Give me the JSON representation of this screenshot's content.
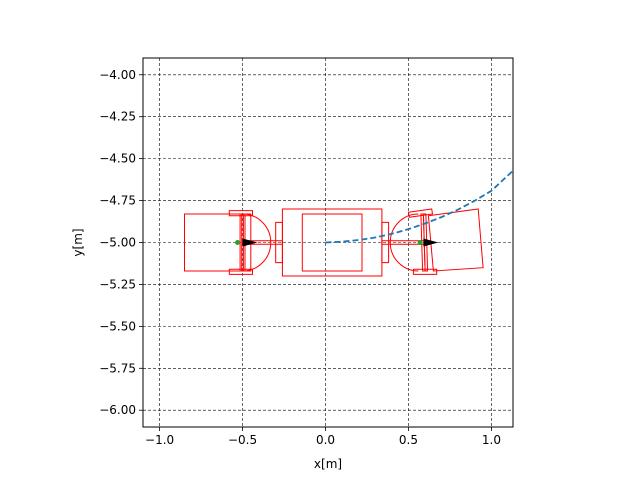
{
  "chart_data": {
    "type": "line",
    "title": "",
    "xlabel": "x[m]",
    "ylabel": "y[m]",
    "xlim": [
      -1.1,
      1.13
    ],
    "ylim": [
      -6.1,
      -3.9
    ],
    "xticks": [
      -1.0,
      -0.5,
      0.0,
      0.5,
      1.0
    ],
    "xtick_labels": [
      "−1.0",
      "−0.5",
      "0.0",
      "0.5",
      "1.0"
    ],
    "yticks": [
      -4.0,
      -4.25,
      -4.5,
      -4.75,
      -5.0,
      -5.25,
      -5.5,
      -5.75,
      -6.0
    ],
    "ytick_labels": [
      "−4.00",
      "−4.25",
      "−4.50",
      "−4.75",
      "−5.00",
      "−5.25",
      "−5.50",
      "−5.75",
      "−6.00"
    ],
    "grid": true,
    "series": [
      {
        "style": "dashed",
        "color": "#1f77b4",
        "x": [
          0.0,
          0.1,
          0.2,
          0.3,
          0.4,
          0.5,
          0.6,
          0.7,
          0.8,
          0.9,
          1.0,
          1.13
        ],
        "y": [
          -5.0,
          -4.995,
          -4.985,
          -4.97,
          -4.948,
          -4.92,
          -4.887,
          -4.848,
          -4.803,
          -4.751,
          -4.692,
          -4.572
        ]
      }
    ],
    "vehicle_color": "#ff0000",
    "vehicle_polygons": [
      {
        "name": "trailer-body",
        "points": [
          [
            -0.85,
            -4.83
          ],
          [
            -0.45,
            -4.83
          ],
          [
            -0.45,
            -5.17
          ],
          [
            -0.85,
            -5.17
          ]
        ]
      },
      {
        "name": "left-wheel-top",
        "points": [
          [
            -0.58,
            -4.81
          ],
          [
            -0.44,
            -4.81
          ],
          [
            -0.44,
            -4.84
          ],
          [
            -0.58,
            -4.84
          ]
        ]
      },
      {
        "name": "left-wheel-bottom",
        "points": [
          [
            -0.58,
            -5.16
          ],
          [
            -0.44,
            -5.16
          ],
          [
            -0.44,
            -5.19
          ],
          [
            -0.58,
            -5.19
          ]
        ]
      },
      {
        "name": "left-axle-a",
        "points": [
          [
            -0.515,
            -4.83
          ],
          [
            -0.505,
            -4.83
          ],
          [
            -0.505,
            -5.17
          ],
          [
            -0.515,
            -5.17
          ]
        ]
      },
      {
        "name": "left-axle-b",
        "points": [
          [
            -0.495,
            -4.83
          ],
          [
            -0.485,
            -4.83
          ],
          [
            -0.485,
            -5.17
          ],
          [
            -0.495,
            -5.17
          ]
        ]
      },
      {
        "name": "left-hitch",
        "points": [
          [
            -0.5,
            -4.99
          ],
          [
            -0.26,
            -4.99
          ],
          [
            -0.26,
            -5.01
          ],
          [
            -0.5,
            -5.01
          ]
        ]
      },
      {
        "name": "cab-front-bumper-left",
        "points": [
          [
            -0.3,
            -4.88
          ],
          [
            -0.26,
            -4.88
          ],
          [
            -0.26,
            -5.12
          ],
          [
            -0.3,
            -5.12
          ]
        ]
      },
      {
        "name": "cab-outer",
        "points": [
          [
            -0.26,
            -4.8
          ],
          [
            0.34,
            -4.8
          ],
          [
            0.34,
            -5.2
          ],
          [
            -0.26,
            -5.2
          ]
        ]
      },
      {
        "name": "cab-inner",
        "points": [
          [
            -0.14,
            -4.83
          ],
          [
            0.22,
            -4.83
          ],
          [
            0.22,
            -5.17
          ],
          [
            -0.14,
            -5.17
          ]
        ]
      },
      {
        "name": "cab-front-bumper-right",
        "points": [
          [
            0.34,
            -4.88
          ],
          [
            0.38,
            -4.88
          ],
          [
            0.38,
            -5.12
          ],
          [
            0.34,
            -5.12
          ]
        ]
      },
      {
        "name": "right-hitch",
        "points": [
          [
            0.34,
            -4.99
          ],
          [
            0.6,
            -4.99
          ],
          [
            0.6,
            -5.01
          ],
          [
            0.34,
            -5.01
          ]
        ]
      },
      {
        "name": "right-wheel-top",
        "points": [
          [
            0.5,
            -4.82
          ],
          [
            0.64,
            -4.8
          ],
          [
            0.645,
            -4.83
          ],
          [
            0.505,
            -4.85
          ]
        ]
      },
      {
        "name": "right-wheel-bottom",
        "points": [
          [
            0.53,
            -5.16
          ],
          [
            0.67,
            -5.16
          ],
          [
            0.67,
            -5.19
          ],
          [
            0.53,
            -5.19
          ]
        ]
      },
      {
        "name": "right-axle-a",
        "points": [
          [
            0.575,
            -4.83
          ],
          [
            0.59,
            -4.83
          ],
          [
            0.6,
            -5.17
          ],
          [
            0.585,
            -5.17
          ]
        ]
      },
      {
        "name": "right-axle-b",
        "points": [
          [
            0.59,
            -4.83
          ],
          [
            0.605,
            -4.83
          ],
          [
            0.615,
            -5.17
          ],
          [
            0.6,
            -5.17
          ]
        ]
      },
      {
        "name": "front-trailer-body",
        "points": [
          [
            0.62,
            -4.84
          ],
          [
            0.92,
            -4.8
          ],
          [
            0.95,
            -5.15
          ],
          [
            0.65,
            -5.17
          ]
        ]
      }
    ],
    "vehicle_arcs": [
      {
        "name": "left-coupler",
        "cx": -0.5,
        "cy": -5.0,
        "r": 0.17,
        "side": "right"
      },
      {
        "name": "right-coupler",
        "cx": 0.56,
        "cy": -5.0,
        "r": 0.17,
        "side": "left"
      }
    ],
    "arrows": [
      {
        "name": "rear-heading",
        "x": -0.5,
        "y": -5.0,
        "dx": 0.09
      },
      {
        "name": "front-heading",
        "x": 0.59,
        "y": -5.0,
        "dx": 0.09
      }
    ],
    "markers": [
      {
        "name": "rear-point",
        "x": -0.53,
        "y": -5.0,
        "color": "#2ca02c"
      },
      {
        "name": "front-point",
        "x": 0.57,
        "y": -5.0,
        "color": "#2ca02c"
      }
    ]
  }
}
